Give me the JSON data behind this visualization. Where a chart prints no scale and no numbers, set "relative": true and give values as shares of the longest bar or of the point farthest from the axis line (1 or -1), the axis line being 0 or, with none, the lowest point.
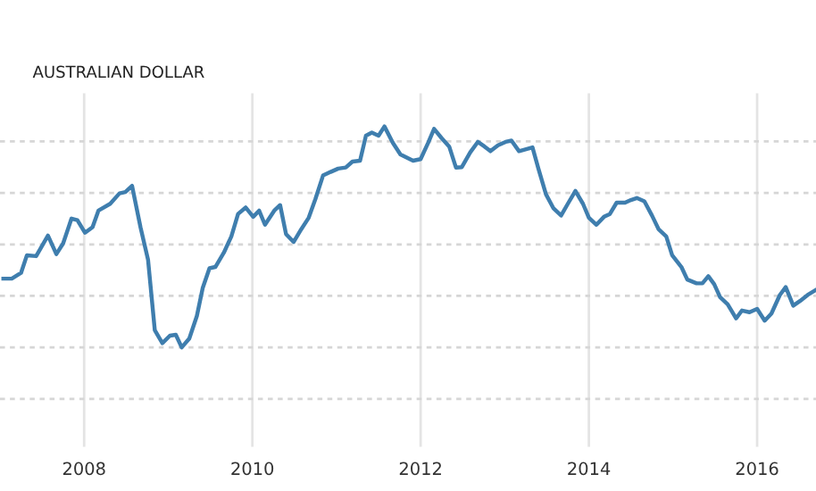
{
  "chart_data": {
    "type": "line",
    "title": "AUSTRALIAN DOLLAR",
    "relative": true,
    "grid": true,
    "marker": "none",
    "line_style": "solid",
    "xlim": [
      2007.0,
      2016.7
    ],
    "xticks": [
      2008,
      2010,
      2012,
      2014,
      2016
    ],
    "series": [
      {
        "color": "#3f7eae",
        "x": [
          2007.04,
          2007.14,
          2007.25,
          2007.32,
          2007.43,
          2007.57,
          2007.67,
          2007.75,
          2007.85,
          2007.92,
          2008.01,
          2008.1,
          2008.17,
          2008.31,
          2008.42,
          2008.49,
          2008.57,
          2008.67,
          2008.76,
          2008.84,
          2008.93,
          2009.02,
          2009.09,
          2009.16,
          2009.25,
          2009.34,
          2009.41,
          2009.49,
          2009.56,
          2009.66,
          2009.75,
          2009.83,
          2009.92,
          2010.01,
          2010.08,
          2010.15,
          2010.26,
          2010.33,
          2010.4,
          2010.49,
          2010.58,
          2010.67,
          2010.75,
          2010.84,
          2010.93,
          2011.02,
          2011.11,
          2011.19,
          2011.28,
          2011.35,
          2011.42,
          2011.5,
          2011.57,
          2011.67,
          2011.76,
          2011.84,
          2011.91,
          2012.0,
          2012.09,
          2012.16,
          2012.25,
          2012.34,
          2012.42,
          2012.49,
          2012.59,
          2012.68,
          2012.76,
          2012.83,
          2012.92,
          2013.01,
          2013.08,
          2013.17,
          2013.33,
          2013.4,
          2013.49,
          2013.58,
          2013.67,
          2013.75,
          2013.84,
          2013.93,
          2014.0,
          2014.09,
          2014.18,
          2014.25,
          2014.33,
          2014.43,
          2014.5,
          2014.57,
          2014.66,
          2014.75,
          2014.83,
          2014.92,
          2014.99,
          2015.1,
          2015.17,
          2015.28,
          2015.35,
          2015.42,
          2015.49,
          2015.56,
          2015.65,
          2015.75,
          2015.82,
          2015.91,
          2016.0,
          2016.09,
          2016.17,
          2016.27,
          2016.34,
          2016.43,
          2016.51,
          2016.6,
          2016.69
        ],
        "values": [
          0.311,
          0.311,
          0.337,
          0.417,
          0.413,
          0.506,
          0.422,
          0.47,
          0.583,
          0.576,
          0.519,
          0.544,
          0.619,
          0.65,
          0.697,
          0.703,
          0.731,
          0.544,
          0.396,
          0.078,
          0.019,
          0.053,
          0.057,
          0,
          0.04,
          0.142,
          0.269,
          0.358,
          0.364,
          0.428,
          0.502,
          0.604,
          0.633,
          0.591,
          0.619,
          0.555,
          0.619,
          0.644,
          0.513,
          0.477,
          0.534,
          0.587,
          0.672,
          0.778,
          0.794,
          0.809,
          0.814,
          0.841,
          0.845,
          0.958,
          0.972,
          0.958,
          1,
          0.926,
          0.873,
          0.858,
          0.845,
          0.852,
          0.926,
          0.989,
          0.947,
          0.909,
          0.814,
          0.816,
          0.883,
          0.93,
          0.909,
          0.888,
          0.915,
          0.93,
          0.936,
          0.888,
          0.905,
          0.809,
          0.693,
          0.629,
          0.597,
          0.65,
          0.708,
          0.65,
          0.587,
          0.555,
          0.591,
          0.604,
          0.655,
          0.655,
          0.667,
          0.676,
          0.661,
          0.597,
          0.534,
          0.502,
          0.417,
          0.364,
          0.307,
          0.29,
          0.29,
          0.322,
          0.286,
          0.227,
          0.195,
          0.131,
          0.167,
          0.159,
          0.174,
          0.121,
          0.153,
          0.237,
          0.273,
          0.189,
          0.21,
          0.237,
          0.258
        ]
      }
    ]
  }
}
